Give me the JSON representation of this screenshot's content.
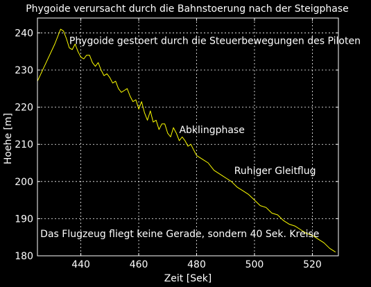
{
  "chart_data": {
    "type": "line",
    "title": "Phygoide verursacht durch die Bahnstoerung nach der Steigphase",
    "xlabel": "Zeit [Sek]",
    "ylabel": "Hoehe  [m]",
    "xlim": [
      425,
      529
    ],
    "ylim": [
      180,
      244
    ],
    "grid": true,
    "xticks": [
      440,
      460,
      480,
      500,
      520
    ],
    "yticks": [
      180,
      190,
      200,
      210,
      220,
      230,
      240
    ],
    "colors": {
      "background": "#000000",
      "axes": "#ffffff",
      "grid": "#ffffff",
      "line": "#ffff00"
    },
    "annotations": [
      {
        "text": "Phygoide gestoert durch die Steuerbewegungen des Piloten",
        "x": 436,
        "y": 237
      },
      {
        "text": "Abklingphase",
        "x": 474,
        "y": 213
      },
      {
        "text": "Ruhiger Gleitflug",
        "x": 493,
        "y": 202
      },
      {
        "text": "Das Flugzeug fliegt keine Gerade, sondern 40 Sek. Kreise",
        "x": 426,
        "y": 185
      }
    ],
    "series": [
      {
        "values": [
          [
            425,
            227
          ],
          [
            428,
            232
          ],
          [
            431,
            237
          ],
          [
            433,
            241
          ],
          [
            434,
            240.5
          ],
          [
            435,
            238.5
          ],
          [
            436,
            236
          ],
          [
            437,
            235.5
          ],
          [
            438,
            237
          ],
          [
            439,
            235
          ],
          [
            440,
            233.5
          ],
          [
            441,
            233
          ],
          [
            442,
            234
          ],
          [
            443,
            234
          ],
          [
            444,
            232
          ],
          [
            445,
            231
          ],
          [
            446,
            232
          ],
          [
            447,
            230
          ],
          [
            448,
            228.5
          ],
          [
            449,
            229
          ],
          [
            450,
            228
          ],
          [
            451,
            226.5
          ],
          [
            452,
            227
          ],
          [
            453,
            225
          ],
          [
            454,
            224
          ],
          [
            455,
            224.5
          ],
          [
            456,
            225
          ],
          [
            457,
            223
          ],
          [
            458,
            221.5
          ],
          [
            459,
            222
          ],
          [
            460,
            219.5
          ],
          [
            461,
            221.5
          ],
          [
            462,
            218.5
          ],
          [
            463,
            216.5
          ],
          [
            464,
            219
          ],
          [
            465,
            216
          ],
          [
            466,
            216.5
          ],
          [
            467,
            214
          ],
          [
            468,
            215.5
          ],
          [
            469,
            215.5
          ],
          [
            470,
            213
          ],
          [
            471,
            212
          ],
          [
            472,
            214.5
          ],
          [
            473,
            213
          ],
          [
            474,
            211
          ],
          [
            475,
            212
          ],
          [
            476,
            211
          ],
          [
            477,
            209.5
          ],
          [
            478,
            210
          ],
          [
            479,
            208.5
          ],
          [
            480,
            207
          ],
          [
            482,
            206
          ],
          [
            484,
            205
          ],
          [
            486,
            203
          ],
          [
            488,
            202
          ],
          [
            490,
            201
          ],
          [
            492,
            200
          ],
          [
            494,
            198.5
          ],
          [
            496,
            197.5
          ],
          [
            498,
            196.5
          ],
          [
            500,
            195
          ],
          [
            502,
            193.5
          ],
          [
            504,
            193
          ],
          [
            506,
            191.5
          ],
          [
            508,
            191
          ],
          [
            510,
            189.5
          ],
          [
            512,
            188.5
          ],
          [
            514,
            188
          ],
          [
            516,
            187
          ],
          [
            518,
            186
          ],
          [
            520,
            185.5
          ],
          [
            522,
            184.5
          ],
          [
            524,
            183.5
          ],
          [
            526,
            182
          ],
          [
            528,
            181
          ]
        ]
      }
    ]
  }
}
